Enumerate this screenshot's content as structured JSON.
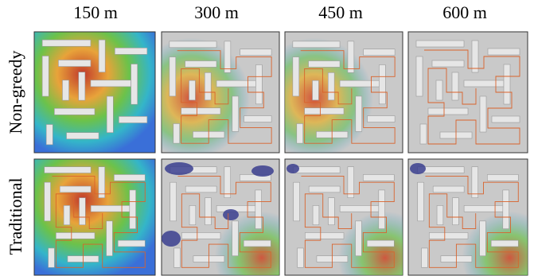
{
  "columns": [
    "150 m",
    "300 m",
    "450 m",
    "600 m"
  ],
  "rows": [
    "Non-greedy",
    "Traditional"
  ]
}
